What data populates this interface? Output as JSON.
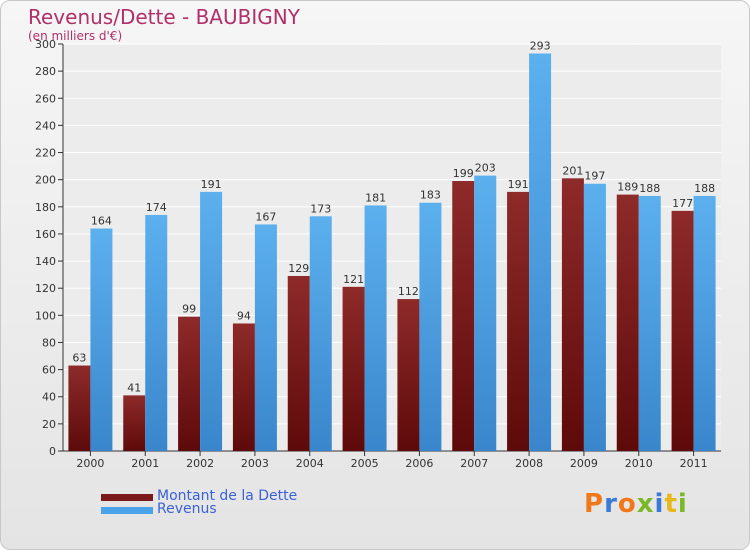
{
  "chart_data": {
    "type": "bar",
    "title": "Revenus/Dette - BAUBIGNY",
    "subtitle": "(en milliers d'€)",
    "categories": [
      "2000",
      "2001",
      "2002",
      "2003",
      "2004",
      "2005",
      "2006",
      "2007",
      "2008",
      "2009",
      "2010",
      "2011"
    ],
    "series": [
      {
        "name": "Montant de la Dette",
        "color": "#7a1a1a",
        "values": [
          63,
          41,
          99,
          94,
          129,
          121,
          112,
          199,
          191,
          201,
          189,
          177
        ]
      },
      {
        "name": "Revenus",
        "color": "#4aa3e8",
        "values": [
          164,
          174,
          191,
          167,
          173,
          181,
          183,
          203,
          293,
          197,
          188,
          188
        ]
      }
    ],
    "ylim": [
      0,
      300
    ],
    "yticks": [
      0,
      20,
      40,
      60,
      80,
      100,
      120,
      140,
      160,
      180,
      200,
      220,
      240,
      260,
      280,
      300
    ],
    "xlabel": "",
    "ylabel": "",
    "grid": true,
    "legend_position": "bottom-left"
  },
  "logo": {
    "text": "Proxiti",
    "colors": [
      "#f07818",
      "#3a7ad6",
      "#f07818",
      "#7ab828",
      "#3a7ad6",
      "#e8b818",
      "#7ab828"
    ]
  }
}
